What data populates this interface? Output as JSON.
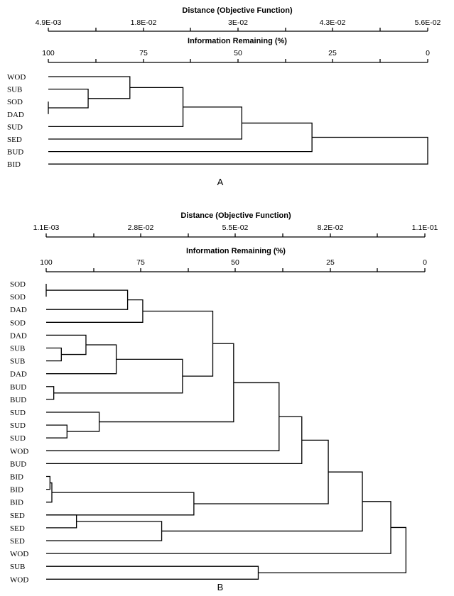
{
  "panels": [
    {
      "label": "A",
      "axis_distance": {
        "title": "Distance (Objective Function)",
        "ticks": [
          "4.9E-03",
          "1.8E-02",
          "3E-02",
          "4.3E-02",
          "5.6E-02"
        ]
      },
      "axis_information": {
        "title": "Information Remaining (%)",
        "ticks": [
          "100",
          "75",
          "50",
          "25",
          "0"
        ]
      },
      "leaves": [
        "WOD",
        "SUB",
        "SOD",
        "DAD",
        "SUD",
        "SED",
        "BUD",
        "BID"
      ],
      "merges": [
        {
          "join": [
            "SOD",
            "DAD"
          ],
          "info_remaining": 100.0
        },
        {
          "join": [
            "SUB",
            "SOD+DAD"
          ],
          "info_remaining": 89.5
        },
        {
          "join": [
            "WOD",
            "SUB+SOD+DAD"
          ],
          "info_remaining": 78.5
        },
        {
          "join": [
            "WOD..DAD",
            "SUD"
          ],
          "info_remaining": 64.5
        },
        {
          "join": [
            "WOD..SUD",
            "SED"
          ],
          "info_remaining": 49.0
        },
        {
          "join": [
            "WOD..SED",
            "BUD"
          ],
          "info_remaining": 30.5
        },
        {
          "join": [
            "WOD..BUD",
            "BID"
          ],
          "info_remaining": 0.0
        }
      ]
    },
    {
      "label": "B",
      "axis_distance": {
        "title": "Distance (Objective Function)",
        "ticks": [
          "1.1E-03",
          "2.8E-02",
          "5.5E-02",
          "8.2E-02",
          "1.1E-01"
        ]
      },
      "axis_information": {
        "title": "Information Remaining (%)",
        "ticks": [
          "100",
          "75",
          "50",
          "25",
          "0"
        ]
      },
      "leaves": [
        "SOD",
        "SOD",
        "DAD",
        "SOD",
        "DAD",
        "SUB",
        "SUB",
        "DAD",
        "BUD",
        "BUD",
        "SUD",
        "SUD",
        "SUD",
        "WOD",
        "BUD",
        "BID",
        "BID",
        "BID",
        "SED",
        "SED",
        "SED",
        "WOD",
        "SUB",
        "WOD"
      ],
      "merges": [
        {
          "join": [
            "SOD",
            "SOD"
          ],
          "info_remaining": 100.0
        },
        {
          "join": [
            "SOD+SOD",
            "DAD"
          ],
          "info_remaining": 78.5
        },
        {
          "join": [
            "SOD+SOD+DAD",
            "SOD"
          ],
          "info_remaining": 74.5
        },
        {
          "join": [
            "SUB",
            "SUB"
          ],
          "info_remaining": 96.0
        },
        {
          "join": [
            "DAD",
            "SUB+SUB"
          ],
          "info_remaining": 89.5
        },
        {
          "join": [
            "DAD+SUB+SUB",
            "DAD"
          ],
          "info_remaining": 81.5
        },
        {
          "join": [
            "BUD",
            "BUD"
          ],
          "info_remaining": 98.0
        },
        {
          "join": [
            "DAD..DAD",
            "BUD+BUD"
          ],
          "info_remaining": 64.0
        },
        {
          "join": [
            "SOD..SOD",
            "DAD..BUD"
          ],
          "info_remaining": 56.0
        },
        {
          "join": [
            "SUD",
            "SUD"
          ],
          "info_remaining": 94.5
        },
        {
          "join": [
            "SUD",
            "SUD+SUD"
          ],
          "info_remaining": 86.0
        },
        {
          "join": [
            "SOD..BUD",
            "SUD..SUD"
          ],
          "info_remaining": 50.5
        },
        {
          "join": [
            "SOD..SUD",
            "WOD"
          ],
          "info_remaining": 38.5
        },
        {
          "join": [
            "SOD..WOD",
            "BUD"
          ],
          "info_remaining": 32.5
        },
        {
          "join": [
            "BID",
            "BID"
          ],
          "info_remaining": 99.0
        },
        {
          "join": [
            "BID+BID",
            "BID"
          ],
          "info_remaining": 98.5
        },
        {
          "join": [
            "BID..BID",
            "SED"
          ],
          "info_remaining": 61.0
        },
        {
          "join": [
            "SOD..BUD",
            "BID..SED"
          ],
          "info_remaining": 25.5
        },
        {
          "join": [
            "SED",
            "SED"
          ],
          "info_remaining": 92.0
        },
        {
          "join": [
            "SED+SED",
            "SED"
          ],
          "info_remaining": 69.5
        },
        {
          "join": [
            "SOD..SED",
            "SED..SED"
          ],
          "info_remaining": 16.5
        },
        {
          "join": [
            "SOD..SED",
            "WOD"
          ],
          "info_remaining": 9.0
        },
        {
          "join": [
            "SUB",
            "WOD"
          ],
          "info_remaining": 44.0
        },
        {
          "join": [
            "SOD..WOD",
            "SUB+WOD"
          ],
          "info_remaining": 5.0
        }
      ]
    }
  ]
}
